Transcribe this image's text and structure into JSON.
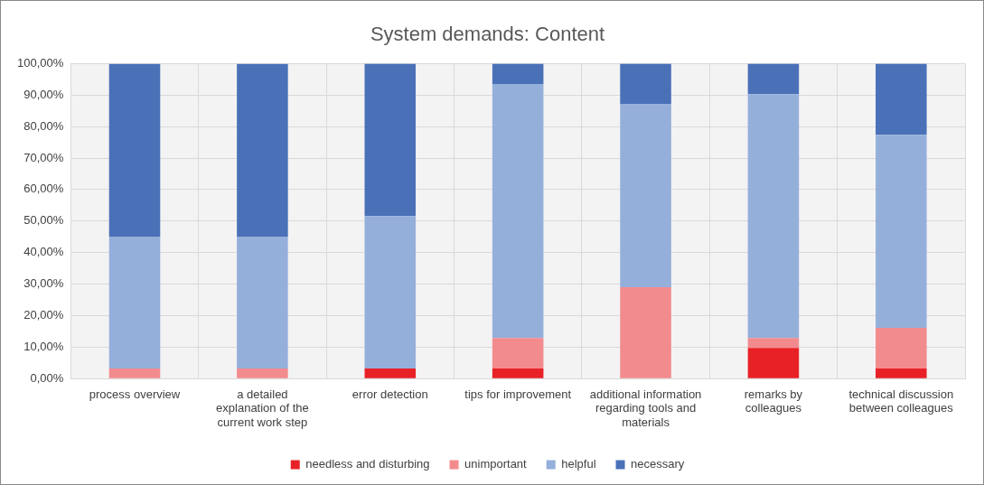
{
  "chart_data": {
    "type": "bar",
    "title": "System demands: Content",
    "stacked": true,
    "categories": [
      "process overview",
      "a detailed explanation of the current work step",
      "error detection",
      "tips for improvement",
      "additional information regarding tools and materials",
      "remarks by colleagues",
      "technical discussion between colleagues"
    ],
    "series": [
      {
        "name": "needless and disturbing",
        "color": "#e82127",
        "values": [
          0,
          0,
          3.2,
          3.2,
          0,
          9.7,
          3.2
        ]
      },
      {
        "name": "unimportant",
        "color": "#f28b8e",
        "values": [
          3.2,
          3.2,
          0,
          9.7,
          29.0,
          3.2,
          12.9
        ]
      },
      {
        "name": "helpful",
        "color": "#95afdb",
        "values": [
          41.9,
          41.9,
          48.4,
          80.6,
          58.1,
          77.4,
          61.3
        ]
      },
      {
        "name": "necessary",
        "color": "#4a71b8",
        "values": [
          54.8,
          54.8,
          48.4,
          6.5,
          12.9,
          9.7,
          22.6
        ]
      }
    ],
    "ylim": [
      0,
      100
    ],
    "yticks": [
      {
        "value": 0,
        "label": "0,00%"
      },
      {
        "value": 10,
        "label": "10,00%"
      },
      {
        "value": 20,
        "label": "20,00%"
      },
      {
        "value": 30,
        "label": "30,00%"
      },
      {
        "value": 40,
        "label": "40,00%"
      },
      {
        "value": 50,
        "label": "50,00%"
      },
      {
        "value": 60,
        "label": "60,00%"
      },
      {
        "value": 70,
        "label": "70,00%"
      },
      {
        "value": 80,
        "label": "80,00%"
      },
      {
        "value": 90,
        "label": "90,00%"
      },
      {
        "value": 100,
        "label": "100,00%"
      }
    ],
    "grid": true,
    "legend": "bottom"
  }
}
